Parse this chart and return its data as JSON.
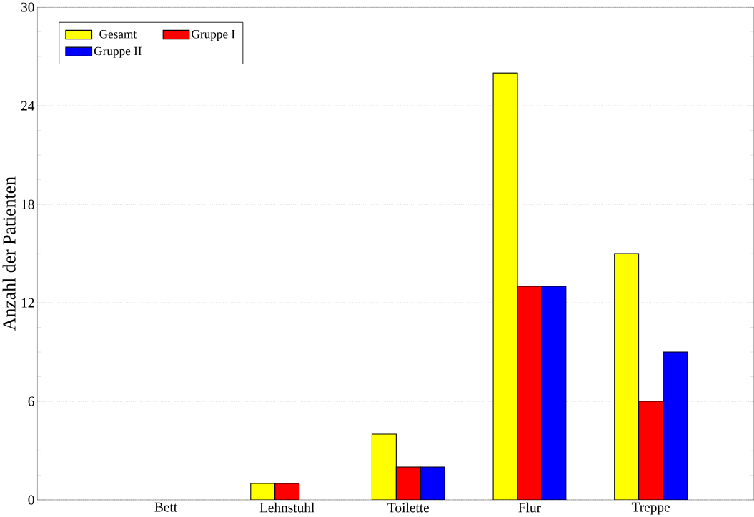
{
  "chart_data": {
    "type": "bar",
    "ylabel": "Anzahl der Patienten",
    "categories": [
      "Bett",
      "Lehnstuhl",
      "Toilette",
      "Flur",
      "Treppe"
    ],
    "series": [
      {
        "name": "Gesamt",
        "color": "#ffff00",
        "values": [
          0,
          1,
          4,
          26,
          15
        ]
      },
      {
        "name": "Gruppe I",
        "color": "#ff0000",
        "values": [
          0,
          1,
          2,
          13,
          6
        ]
      },
      {
        "name": "Gruppe II",
        "color": "#0000ff",
        "values": [
          0,
          0,
          2,
          13,
          9
        ]
      }
    ],
    "ylim": [
      0,
      30
    ],
    "yticks": [
      0,
      6,
      12,
      18,
      24,
      30
    ],
    "grid": "y",
    "legend": "top left"
  }
}
